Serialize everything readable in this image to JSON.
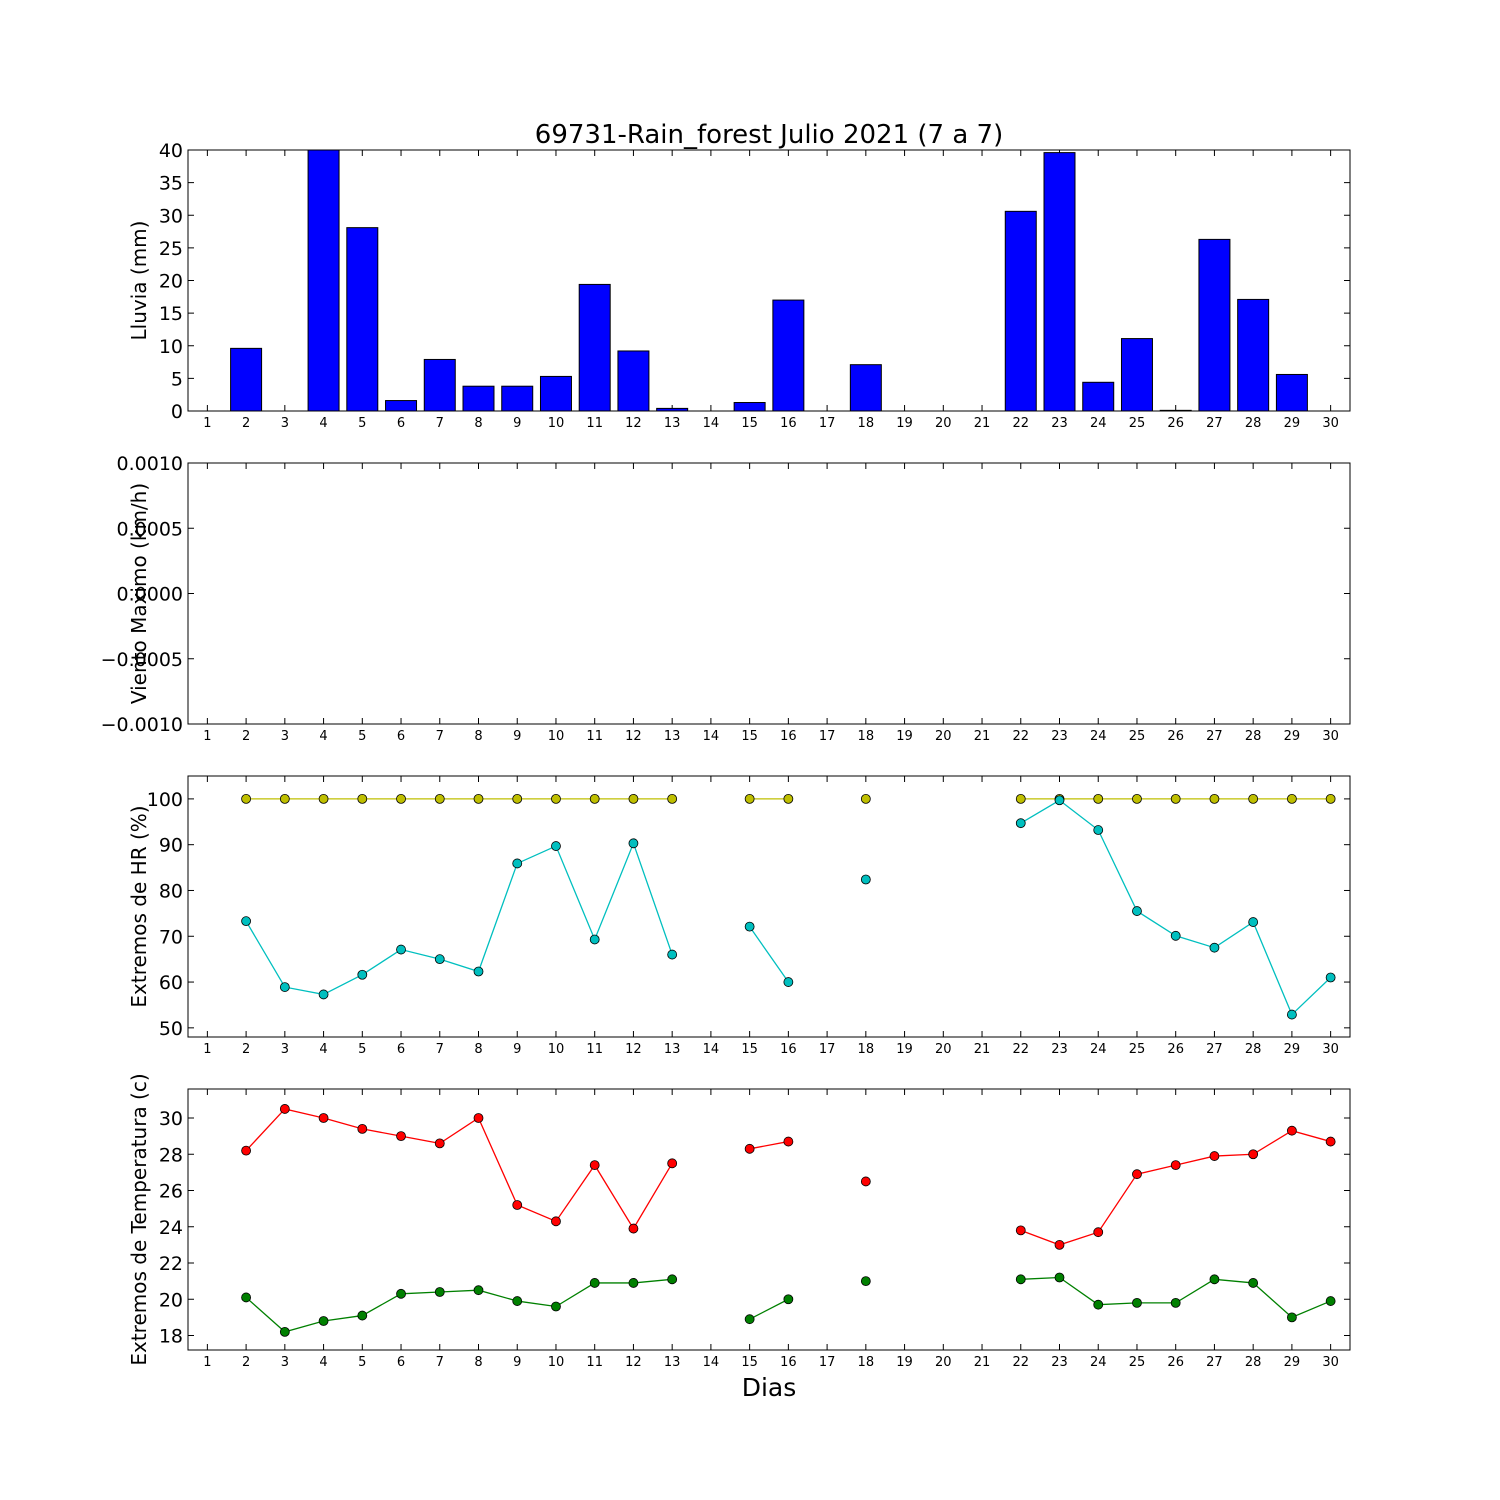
{
  "title": "69731-Rain_forest Julio 2021  (7 a 7)",
  "xlabel": "Dias",
  "days": [
    1,
    2,
    3,
    4,
    5,
    6,
    7,
    8,
    9,
    10,
    11,
    12,
    13,
    14,
    15,
    16,
    17,
    18,
    19,
    20,
    21,
    22,
    23,
    24,
    25,
    26,
    27,
    28,
    29,
    30
  ],
  "colors": {
    "rain": "#0000ff",
    "hr_max": "#bfbf00",
    "hr_min": "#00bfbf",
    "temp_max": "#ff0000",
    "temp_min": "#008000"
  },
  "chart_data": [
    {
      "type": "bar",
      "ylabel": "Lluvia (mm)",
      "ylim": [
        0,
        40
      ],
      "yticks": [
        "0",
        "5",
        "10",
        "15",
        "20",
        "25",
        "30",
        "35",
        "40"
      ],
      "x": [
        1,
        2,
        3,
        4,
        5,
        6,
        7,
        8,
        9,
        10,
        11,
        12,
        13,
        14,
        15,
        16,
        17,
        18,
        19,
        20,
        21,
        22,
        23,
        24,
        25,
        26,
        27,
        28,
        29,
        30
      ],
      "values": [
        0,
        9.6,
        0,
        40,
        28.1,
        1.6,
        7.9,
        3.8,
        3.8,
        5.3,
        19.4,
        9.2,
        0.4,
        0,
        1.3,
        17,
        0,
        7.1,
        0,
        0,
        0,
        30.6,
        39.6,
        4.4,
        11.1,
        0.1,
        26.3,
        17.1,
        5.6,
        0
      ],
      "series_color": "rain"
    },
    {
      "type": "line",
      "ylabel": "Viento Maximo (km/h)",
      "ylim": [
        -0.001,
        0.001
      ],
      "yticks": [
        "−0.0010",
        "−0.0005",
        "0.0000",
        "0.0005",
        "0.0010"
      ],
      "x": [
        1,
        2,
        3,
        4,
        5,
        6,
        7,
        8,
        9,
        10,
        11,
        12,
        13,
        14,
        15,
        16,
        17,
        18,
        19,
        20,
        21,
        22,
        23,
        24,
        25,
        26,
        27,
        28,
        29,
        30
      ],
      "series": []
    },
    {
      "type": "line",
      "ylabel": "Extremos de HR (%)",
      "ylim": [
        48,
        105
      ],
      "yticks": [
        "50",
        "60",
        "70",
        "80",
        "90",
        "100"
      ],
      "x": [
        1,
        2,
        3,
        4,
        5,
        6,
        7,
        8,
        9,
        10,
        11,
        12,
        13,
        14,
        15,
        16,
        17,
        18,
        19,
        20,
        21,
        22,
        23,
        24,
        25,
        26,
        27,
        28,
        29,
        30
      ],
      "series": [
        {
          "color": "hr_max",
          "values": [
            null,
            100,
            100,
            100,
            100,
            100,
            100,
            100,
            100,
            100,
            100,
            100,
            100,
            null,
            100,
            100,
            null,
            100,
            null,
            null,
            null,
            100,
            100,
            100,
            100,
            100,
            100,
            100,
            100,
            100
          ]
        },
        {
          "color": "hr_min",
          "values": [
            null,
            73.3,
            58.9,
            57.3,
            61.6,
            67.1,
            65,
            62.3,
            85.9,
            89.7,
            69.3,
            90.3,
            66,
            null,
            72.1,
            60,
            null,
            82.4,
            null,
            null,
            null,
            94.7,
            99.7,
            93.2,
            75.5,
            70.1,
            67.5,
            73.1,
            52.9,
            61
          ]
        }
      ]
    },
    {
      "type": "line",
      "ylabel": "Extremos de Temperatura (c)",
      "ylim": [
        17.2,
        31.6
      ],
      "yticks": [
        "18",
        "20",
        "22",
        "24",
        "26",
        "28",
        "30"
      ],
      "x": [
        1,
        2,
        3,
        4,
        5,
        6,
        7,
        8,
        9,
        10,
        11,
        12,
        13,
        14,
        15,
        16,
        17,
        18,
        19,
        20,
        21,
        22,
        23,
        24,
        25,
        26,
        27,
        28,
        29,
        30
      ],
      "series": [
        {
          "color": "temp_max",
          "values": [
            null,
            28.2,
            30.5,
            30,
            29.4,
            29,
            28.6,
            30,
            25.2,
            24.3,
            27.4,
            23.9,
            27.5,
            null,
            28.3,
            28.7,
            null,
            26.5,
            null,
            null,
            null,
            23.8,
            23,
            23.7,
            26.9,
            27.4,
            27.9,
            28,
            29.3,
            28.7
          ]
        },
        {
          "color": "temp_min",
          "values": [
            null,
            20.1,
            18.2,
            18.8,
            19.1,
            20.3,
            20.4,
            20.5,
            19.9,
            19.6,
            20.9,
            20.9,
            21.1,
            null,
            18.9,
            20,
            null,
            21,
            null,
            null,
            null,
            21.1,
            21.2,
            19.7,
            19.8,
            19.8,
            21.1,
            20.9,
            19,
            19.9
          ]
        }
      ]
    }
  ]
}
